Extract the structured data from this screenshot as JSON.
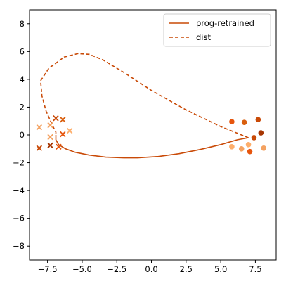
{
  "chart_data": {
    "type": "line",
    "title": "",
    "xlabel": "",
    "ylabel": "",
    "xlim": [
      -8.8,
      9.0
    ],
    "ylim": [
      -9.0,
      9.0
    ],
    "xticks": [
      -7.5,
      -5.0,
      -2.5,
      0.0,
      2.5,
      5.0,
      7.5
    ],
    "xtick_labels": [
      "−7.5",
      "−5.0",
      "−2.5",
      "0.0",
      "2.5",
      "5.0",
      "7.5"
    ],
    "yticks": [
      -8,
      -6,
      -4,
      -2,
      0,
      2,
      4,
      6,
      8
    ],
    "ytick_labels": [
      "−8",
      "−6",
      "−4",
      "−2",
      "0",
      "2",
      "4",
      "6",
      "8"
    ],
    "grid": false,
    "legend_position": "top-right",
    "series": [
      {
        "name": "prog-retrained",
        "style": "solid",
        "color": "#c94a07",
        "x": [
          -6.9,
          -6.9,
          -6.7,
          -6.2,
          -5.5,
          -4.5,
          -3.3,
          -2.0,
          -1.0,
          0.5,
          2.0,
          3.5,
          5.0,
          6.2,
          7.0
        ],
        "y": [
          0.0,
          -0.35,
          -0.7,
          -1.0,
          -1.25,
          -1.45,
          -1.6,
          -1.65,
          -1.65,
          -1.55,
          -1.35,
          -1.05,
          -0.7,
          -0.35,
          -0.2
        ]
      },
      {
        "name": "dist",
        "style": "dashed",
        "color": "#c94a07",
        "x": [
          7.0,
          5.0,
          2.5,
          0.0,
          -2.0,
          -3.5,
          -4.5,
          -5.3,
          -6.3,
          -7.4,
          -8.0,
          -7.9,
          -7.6,
          -7.1,
          -6.9,
          -6.9
        ],
        "y": [
          -0.2,
          0.6,
          1.8,
          3.2,
          4.5,
          5.4,
          5.8,
          5.85,
          5.6,
          4.8,
          3.9,
          2.8,
          1.7,
          0.6,
          0.2,
          0.0
        ]
      }
    ],
    "scatter_x_markers": [
      {
        "x": -8.1,
        "y": 0.55,
        "color": "#f4a261"
      },
      {
        "x": -7.3,
        "y": 0.7,
        "color": "#f4a261"
      },
      {
        "x": -6.9,
        "y": 1.2,
        "color": "#c94a07"
      },
      {
        "x": -6.4,
        "y": 1.1,
        "color": "#d95f0e"
      },
      {
        "x": -5.9,
        "y": 0.3,
        "color": "#fdae6b"
      },
      {
        "x": -6.4,
        "y": 0.05,
        "color": "#e6550d"
      },
      {
        "x": -7.3,
        "y": -0.15,
        "color": "#f4a261"
      },
      {
        "x": -8.1,
        "y": -0.95,
        "color": "#c94a07"
      },
      {
        "x": -7.3,
        "y": -0.75,
        "color": "#a63603"
      },
      {
        "x": -6.7,
        "y": -0.85,
        "color": "#e6550d"
      }
    ],
    "scatter_o_markers": [
      {
        "x": 5.8,
        "y": 0.95,
        "color": "#e6550d"
      },
      {
        "x": 6.7,
        "y": 0.9,
        "color": "#d95f0e"
      },
      {
        "x": 7.7,
        "y": 1.1,
        "color": "#c94a07"
      },
      {
        "x": 7.9,
        "y": 0.15,
        "color": "#a63603"
      },
      {
        "x": 7.4,
        "y": -0.2,
        "color": "#c94a07"
      },
      {
        "x": 5.8,
        "y": -0.85,
        "color": "#fdae6b"
      },
      {
        "x": 6.5,
        "y": -1.0,
        "color": "#f4a261"
      },
      {
        "x": 7.0,
        "y": -0.7,
        "color": "#fdae6b"
      },
      {
        "x": 7.1,
        "y": -1.2,
        "color": "#e6550d"
      },
      {
        "x": 8.1,
        "y": -0.95,
        "color": "#f4a261"
      }
    ]
  }
}
